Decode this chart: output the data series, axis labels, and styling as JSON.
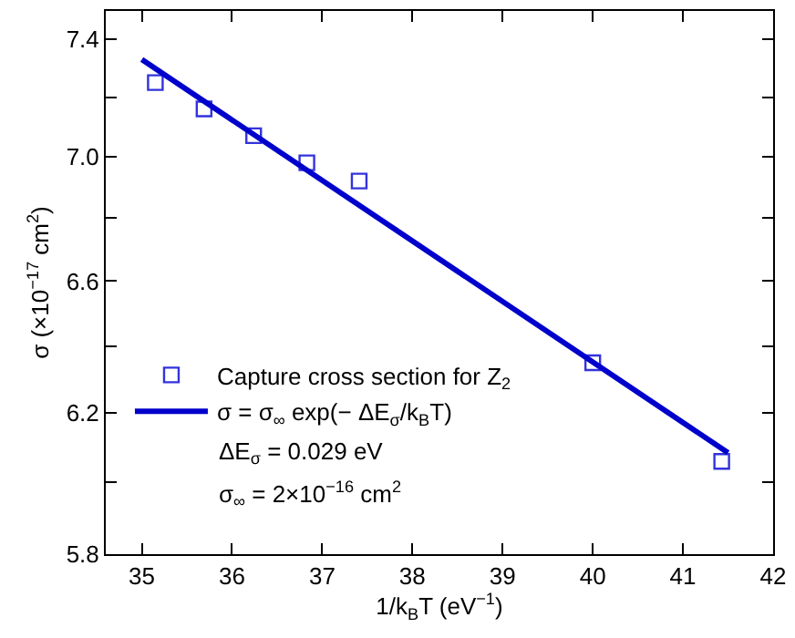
{
  "chart_data": {
    "type": "scatter",
    "xlabel": "1/k$_{B}$T (eV$^{−1}$)",
    "ylabel": "σ (×10$^{−17}$ cm$^{2}$)",
    "log": "y",
    "xlim": [
      34.6,
      42
    ],
    "ylim": [
      5.8,
      7.5
    ],
    "xticks": [
      35,
      36,
      37,
      38,
      39,
      40,
      41,
      42
    ],
    "yticks": [
      5.8,
      {
        "value": 6.0,
        "label": null
      },
      6.2,
      {
        "value": 6.4,
        "label": null
      },
      6.6,
      {
        "value": 6.8,
        "label": null
      },
      {
        "value": 7,
        "label": "7.0"
      },
      {
        "value": 7.2,
        "label": null
      },
      7.4
    ],
    "legend": "bottom left",
    "series": [
      {
        "name": "Capture cross section for Z$_{2}$",
        "marker": "square",
        "color": "#3333dd",
        "x": [
          35.15,
          35.69,
          36.24,
          36.83,
          37.41,
          40.0,
          41.43
        ],
        "values": [
          7.25,
          7.16,
          7.07,
          6.98,
          6.92,
          6.35,
          6.06
        ]
      },
      {
        "name": "σ = σ$_{∞}$ exp(− ΔE$_{σ}$/k$_{B}$T)",
        "type": "line",
        "line_style": "solid",
        "color": "#0000cc",
        "x": [
          35.0,
          41.5
        ],
        "values": [
          7.33,
          6.085
        ]
      }
    ],
    "annotations": [
      "ΔE$_{σ}$ = 0.029 eV",
      "σ$_{∞}$ = 2×10$^{−16}$ cm$^{2}$"
    ]
  }
}
